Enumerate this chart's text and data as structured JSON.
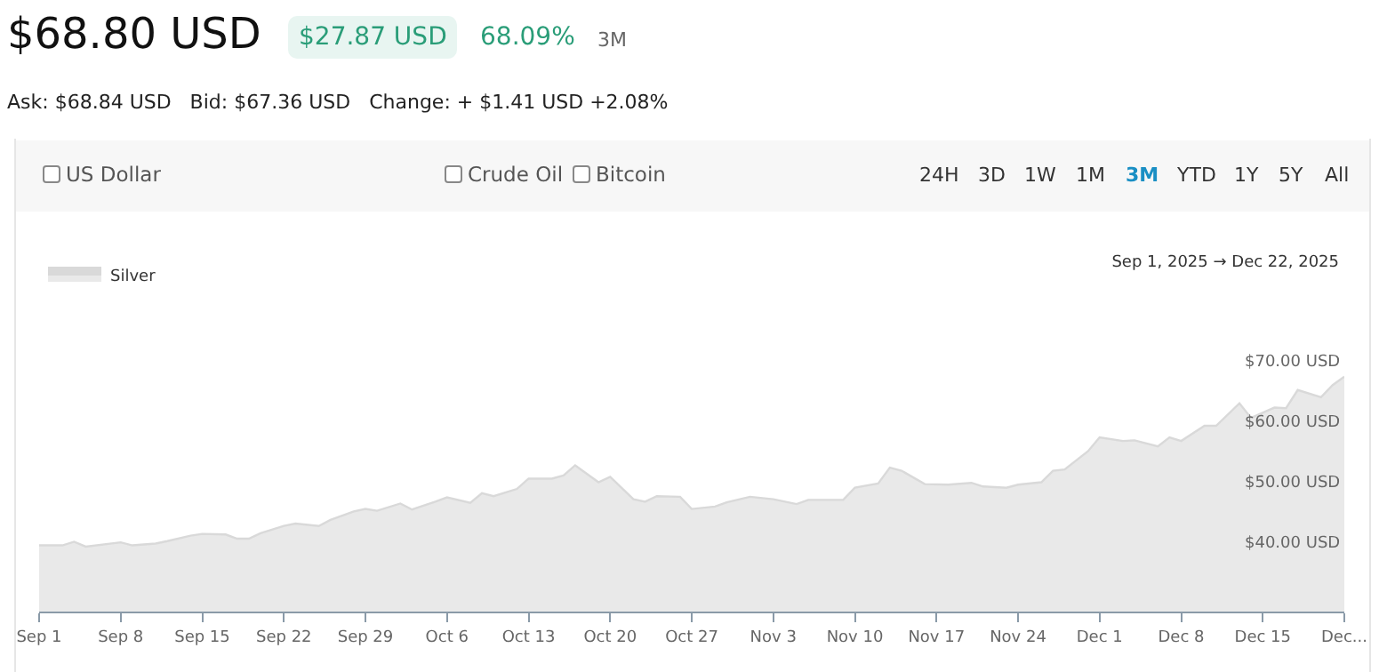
{
  "chart_data": {
    "type": "area",
    "title": "$68.80 USD",
    "subtitle": "Ask: $68.84 USD   Bid: $67.36 USD   Change: + $1.41 USD +2.08%",
    "annotations": [
      "$27.87 USD",
      "68.09%",
      "3M",
      "US Dollar",
      "Crude Oil",
      "Bitcoin",
      "24H",
      "3D",
      "1W",
      "1M",
      "3M",
      "YTD",
      "1Y",
      "5Y",
      "All",
      "Sep 1, 2025 → Dec 22, 2025"
    ],
    "legend": "top left",
    "x": [
      "2025-09-01",
      "2025-09-03",
      "2025-09-04",
      "2025-09-05",
      "2025-09-08",
      "2025-09-09",
      "2025-09-11",
      "2025-09-12",
      "2025-09-14",
      "2025-09-15",
      "2025-09-17",
      "2025-09-18",
      "2025-09-19",
      "2025-09-20",
      "2025-09-22",
      "2025-09-23",
      "2025-09-25",
      "2025-09-26",
      "2025-09-28",
      "2025-09-29",
      "2025-09-30",
      "2025-10-02",
      "2025-10-03",
      "2025-10-05",
      "2025-10-06",
      "2025-10-08",
      "2025-10-09",
      "2025-10-10",
      "2025-10-12",
      "2025-10-13",
      "2025-10-15",
      "2025-10-16",
      "2025-10-17",
      "2025-10-19",
      "2025-10-20",
      "2025-10-22",
      "2025-10-23",
      "2025-10-24",
      "2025-10-26",
      "2025-10-27",
      "2025-10-29",
      "2025-10-30",
      "2025-11-01",
      "2025-11-03",
      "2025-11-05",
      "2025-11-06",
      "2025-11-09",
      "2025-11-10",
      "2025-11-12",
      "2025-11-13",
      "2025-11-14",
      "2025-11-16",
      "2025-11-18",
      "2025-11-20",
      "2025-11-21",
      "2025-11-23",
      "2025-11-24",
      "2025-11-26",
      "2025-11-27",
      "2025-11-28",
      "2025-11-30",
      "2025-12-01",
      "2025-12-03",
      "2025-12-04",
      "2025-12-06",
      "2025-12-07",
      "2025-12-08",
      "2025-12-10",
      "2025-12-11",
      "2025-12-13",
      "2025-12-14",
      "2025-12-16",
      "2025-12-17",
      "2025-12-18",
      "2025-12-20",
      "2025-12-21",
      "2025-12-22"
    ],
    "series": [
      {
        "name": "Silver",
        "color": "#d9d9d9",
        "values": [
          39.9,
          39.9,
          40.5,
          39.7,
          40.4,
          39.9,
          40.2,
          40.6,
          41.5,
          41.8,
          41.7,
          41.0,
          41.0,
          41.9,
          43.1,
          43.5,
          43.1,
          44.1,
          45.5,
          45.9,
          45.6,
          46.8,
          45.8,
          47.1,
          47.8,
          46.9,
          48.5,
          48.0,
          49.2,
          50.9,
          50.9,
          51.4,
          53.1,
          50.3,
          51.2,
          47.5,
          47.1,
          48.0,
          47.9,
          45.9,
          46.3,
          47.0,
          47.9,
          47.5,
          46.7,
          47.4,
          47.4,
          49.4,
          50.1,
          52.7,
          52.2,
          50.0,
          49.9,
          50.2,
          49.6,
          49.4,
          49.9,
          50.3,
          52.2,
          52.4,
          55.4,
          57.7,
          57.1,
          57.2,
          56.2,
          57.7,
          57.1,
          59.6,
          59.6,
          63.3,
          60.9,
          62.6,
          62.5,
          65.5,
          64.3,
          66.3,
          67.7
        ]
      }
    ],
    "xlim": [
      "2025-09-01",
      "2025-12-22"
    ],
    "xticks": [
      {
        "value": "2025-09-01",
        "label": "Sep 1"
      },
      {
        "value": "2025-09-08",
        "label": "Sep 8"
      },
      {
        "value": "2025-09-15",
        "label": "Sep 15"
      },
      {
        "value": "2025-09-22",
        "label": "Sep 22"
      },
      {
        "value": "2025-09-29",
        "label": "Sep 29"
      },
      {
        "value": "2025-10-06",
        "label": "Oct 6"
      },
      {
        "value": "2025-10-13",
        "label": "Oct 13"
      },
      {
        "value": "2025-10-20",
        "label": "Oct 20"
      },
      {
        "value": "2025-10-27",
        "label": "Oct 27"
      },
      {
        "value": "2025-11-03",
        "label": "Nov 3"
      },
      {
        "value": "2025-11-10",
        "label": "Nov 10"
      },
      {
        "value": "2025-11-17",
        "label": "Nov 17"
      },
      {
        "value": "2025-11-24",
        "label": "Nov 24"
      },
      {
        "value": "2025-12-01",
        "label": "Dec 1"
      },
      {
        "value": "2025-12-08",
        "label": "Dec 8"
      },
      {
        "value": "2025-12-15",
        "label": "Dec 15"
      },
      {
        "value": "2025-12-22",
        "label": "Dec..."
      }
    ],
    "ylim": [
      29,
      70
    ],
    "yticks": [
      {
        "value": 40,
        "label": "$40.00 USD"
      },
      {
        "value": 50,
        "label": "$50.00 USD"
      },
      {
        "value": 60,
        "label": "$60.00 USD"
      },
      {
        "value": 70,
        "label": "$70.00 USD"
      }
    ]
  }
}
